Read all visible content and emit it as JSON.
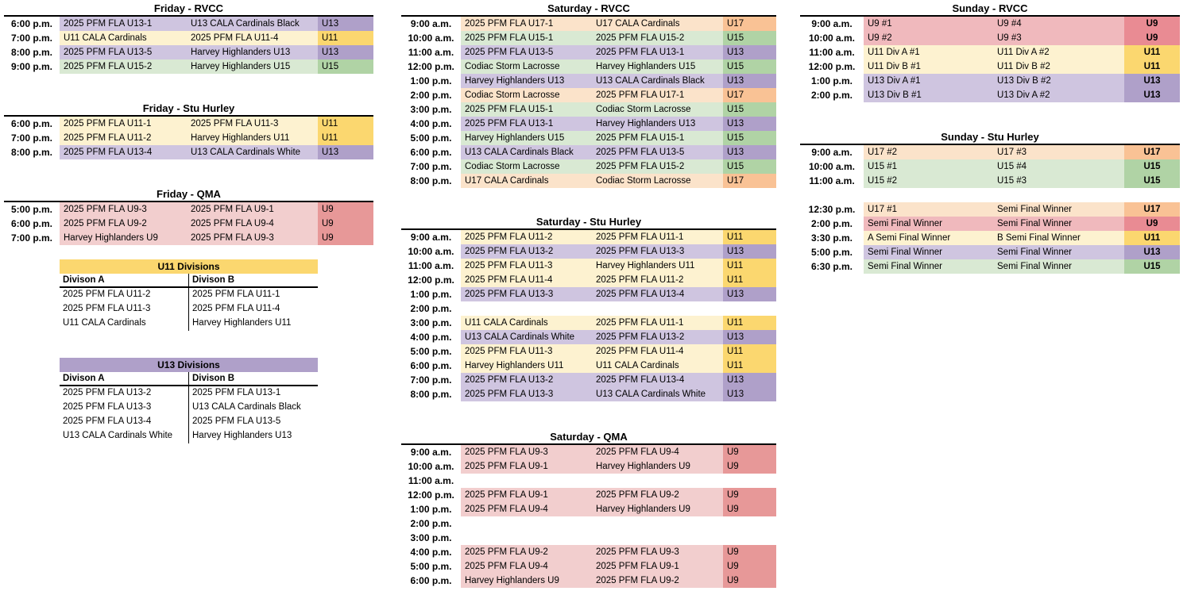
{
  "palette": {
    "u9": {
      "body": "#F2CECE",
      "cat": "#E79898"
    },
    "u9_sunday": {
      "body": "#F0B9BD",
      "cat": "#E98B93"
    },
    "u11": {
      "body": "#FDF2D0",
      "cat": "#FBD76F"
    },
    "u13": {
      "body": "#CFC5E0",
      "cat": "#AFA0C9"
    },
    "u15": {
      "body": "#D9E9D3",
      "cat": "#B0D3A5"
    },
    "u17": {
      "body": "#FBE3CA",
      "cat": "#F9C295"
    }
  },
  "schedule_tables": [
    {
      "id": "friday-rvcc",
      "title": "Friday - RVCC",
      "rows": [
        {
          "time": "6:00 p.m.",
          "home": "2025 PFM FLA U13-1",
          "away": "U13 CALA Cardinals Black",
          "cat": "U13",
          "color": "u13"
        },
        {
          "time": "7:00 p.m.",
          "home": "U11 CALA Cardinals",
          "away": "2025 PFM FLA U11-4",
          "cat": "U11",
          "color": "u11"
        },
        {
          "time": "8:00 p.m.",
          "home": "2025 PFM FLA U13-5",
          "away": "Harvey Highlanders U13",
          "cat": "U13",
          "color": "u13"
        },
        {
          "time": "9:00 p.m.",
          "home": "2025 PFM FLA U15-2",
          "away": "Harvey Highlanders U15",
          "cat": "U15",
          "color": "u15"
        }
      ]
    },
    {
      "id": "friday-stu-hurley",
      "title": "Friday - Stu Hurley",
      "rows": [
        {
          "time": "6:00 p.m.",
          "home": "2025 PFM FLA U11-1",
          "away": "2025 PFM FLA U11-3",
          "cat": "U11",
          "color": "u11"
        },
        {
          "time": "7:00 p.m.",
          "home": "2025 PFM FLA U11-2",
          "away": "Harvey Highlanders U11",
          "cat": "U11",
          "color": "u11"
        },
        {
          "time": "8:00 p.m.",
          "home": "2025 PFM FLA U13-4",
          "away": "U13 CALA Cardinals White",
          "cat": "U13",
          "color": "u13"
        }
      ]
    },
    {
      "id": "friday-qma",
      "title": "Friday - QMA",
      "rows": [
        {
          "time": "5:00 p.m.",
          "home": "2025 PFM FLA U9-3",
          "away": "2025 PFM FLA U9-1",
          "cat": "U9",
          "color": "u9"
        },
        {
          "time": "6:00 p.m.",
          "home": "2025 PFM FLA U9-2",
          "away": "2025 PFM FLA U9-4",
          "cat": "U9",
          "color": "u9"
        },
        {
          "time": "7:00 p.m.",
          "home": "Harvey Highlanders U9",
          "away": "2025 PFM FLA U9-3",
          "cat": "U9",
          "color": "u9"
        }
      ]
    },
    {
      "id": "saturday-rvcc",
      "title": "Saturday - RVCC",
      "rows": [
        {
          "time": "9:00 a.m.",
          "home": "2025 PFM FLA U17-1",
          "away": "U17 CALA Cardinals",
          "cat": "U17",
          "color": "u17"
        },
        {
          "time": "10:00 a.m.",
          "home": "2025 PFM FLA U15-1",
          "away": "2025 PFM FLA U15-2",
          "cat": "U15",
          "color": "u15"
        },
        {
          "time": "11:00 a.m.",
          "home": "2025 PFM FLA U13-5",
          "away": "2025 PFM FLA U13-1",
          "cat": "U13",
          "color": "u13"
        },
        {
          "time": "12:00 p.m.",
          "home": "Codiac Storm Lacrosse",
          "away": "Harvey Highlanders U15",
          "cat": "U15",
          "color": "u15"
        },
        {
          "time": "1:00 p.m.",
          "home": "Harvey Highlanders U13",
          "away": "U13 CALA Cardinals Black",
          "cat": "U13",
          "color": "u13"
        },
        {
          "time": "2:00 p.m.",
          "home": "Codiac Storm Lacrosse",
          "away": "2025 PFM FLA U17-1",
          "cat": "U17",
          "color": "u17"
        },
        {
          "time": "3:00 p.m.",
          "home": "2025 PFM FLA U15-1",
          "away": "Codiac Storm Lacrosse",
          "cat": "U15",
          "color": "u15"
        },
        {
          "time": "4:00 p.m.",
          "home": "2025 PFM FLA U13-1",
          "away": "Harvey Highlanders U13",
          "cat": "U13",
          "color": "u13"
        },
        {
          "time": "5:00 p.m.",
          "home": "Harvey Highlanders U15",
          "away": "2025 PFM FLA U15-1",
          "cat": "U15",
          "color": "u15"
        },
        {
          "time": "6:00 p.m.",
          "home": "U13 CALA Cardinals Black",
          "away": "2025 PFM FLA U13-5",
          "cat": "U13",
          "color": "u13"
        },
        {
          "time": "7:00 p.m.",
          "home": "Codiac Storm Lacrosse",
          "away": "2025 PFM FLA U15-2",
          "cat": "U15",
          "color": "u15"
        },
        {
          "time": "8:00 p.m.",
          "home": "U17 CALA Cardinals",
          "away": "Codiac Storm Lacrosse",
          "cat": "U17",
          "color": "u17"
        }
      ]
    },
    {
      "id": "saturday-stu-hurley",
      "title": "Saturday - Stu Hurley",
      "rows": [
        {
          "time": "9:00 a.m.",
          "home": "2025 PFM FLA U11-2",
          "away": "2025 PFM FLA U11-1",
          "cat": "U11",
          "color": "u11"
        },
        {
          "time": "10:00 a.m.",
          "home": "2025 PFM FLA U13-2",
          "away": "2025 PFM FLA U13-3",
          "cat": "U13",
          "color": "u13"
        },
        {
          "time": "11:00 a.m.",
          "home": "2025 PFM FLA U11-3",
          "away": "Harvey Highlanders U11",
          "cat": "U11",
          "color": "u11"
        },
        {
          "time": "12:00 p.m.",
          "home": "2025 PFM FLA U11-4",
          "away": "2025 PFM FLA U11-2",
          "cat": "U11",
          "color": "u11"
        },
        {
          "time": "1:00 p.m.",
          "home": "2025 PFM FLA U13-3",
          "away": "2025 PFM FLA U13-4",
          "cat": "U13",
          "color": "u13"
        },
        {
          "time": "2:00 p.m.",
          "home": "",
          "away": "",
          "cat": "",
          "color": null
        },
        {
          "time": "3:00 p.m.",
          "home": "U11 CALA Cardinals",
          "away": "2025 PFM FLA U11-1",
          "cat": "U11",
          "color": "u11"
        },
        {
          "time": "4:00 p.m.",
          "home": "U13 CALA Cardinals White",
          "away": "2025 PFM FLA U13-2",
          "cat": "U13",
          "color": "u13"
        },
        {
          "time": "5:00 p.m.",
          "home": "2025 PFM FLA U11-3",
          "away": "2025 PFM FLA U11-4",
          "cat": "U11",
          "color": "u11"
        },
        {
          "time": "6:00 p.m.",
          "home": "Harvey Highlanders U11",
          "away": "U11 CALA Cardinals",
          "cat": "U11",
          "color": "u11"
        },
        {
          "time": "7:00 p.m.",
          "home": "2025 PFM FLA U13-2",
          "away": "2025 PFM FLA U13-4",
          "cat": "U13",
          "color": "u13"
        },
        {
          "time": "8:00 p.m.",
          "home": "2025 PFM FLA U13-3",
          "away": "U13 CALA Cardinals White",
          "cat": "U13",
          "color": "u13"
        }
      ]
    },
    {
      "id": "saturday-qma",
      "title": "Saturday - QMA",
      "rows": [
        {
          "time": "9:00 a.m.",
          "home": "2025 PFM FLA U9-3",
          "away": "2025 PFM FLA U9-4",
          "cat": "U9",
          "color": "u9"
        },
        {
          "time": "10:00 a.m.",
          "home": "2025 PFM FLA U9-1",
          "away": "Harvey Highlanders U9",
          "cat": "U9",
          "color": "u9"
        },
        {
          "time": "11:00 a.m.",
          "home": "",
          "away": "",
          "cat": "",
          "color": null
        },
        {
          "time": "12:00 p.m.",
          "home": "2025 PFM FLA U9-1",
          "away": "2025 PFM FLA U9-2",
          "cat": "U9",
          "color": "u9"
        },
        {
          "time": "1:00 p.m.",
          "home": "2025 PFM FLA U9-4",
          "away": "Harvey Highlanders U9",
          "cat": "U9",
          "color": "u9"
        },
        {
          "time": "2:00 p.m.",
          "home": "",
          "away": "",
          "cat": "",
          "color": null
        },
        {
          "time": "3:00 p.m.",
          "home": "",
          "away": "",
          "cat": "",
          "color": null
        },
        {
          "time": "4:00 p.m.",
          "home": "2025 PFM FLA U9-2",
          "away": "2025 PFM FLA U9-3",
          "cat": "U9",
          "color": "u9"
        },
        {
          "time": "5:00 p.m.",
          "home": "2025 PFM FLA U9-4",
          "away": "2025 PFM FLA U9-1",
          "cat": "U9",
          "color": "u9"
        },
        {
          "time": "6:00 p.m.",
          "home": "Harvey Highlanders U9",
          "away": "2025 PFM FLA U9-2",
          "cat": "U9",
          "color": "u9"
        }
      ]
    },
    {
      "id": "sunday-rvcc",
      "title": "Sunday - RVCC",
      "rows": [
        {
          "time": "9:00 a.m.",
          "home": "U9 #1",
          "away": "U9 #4",
          "cat": "U9",
          "color": "u9_sunday"
        },
        {
          "time": "10:00 a.m.",
          "home": "U9 #2",
          "away": "U9 #3",
          "cat": "U9",
          "color": "u9_sunday"
        },
        {
          "time": "11:00 a.m.",
          "home": "U11 Div A #1",
          "away": "U11 Div A #2",
          "cat": "U11",
          "color": "u11"
        },
        {
          "time": "12:00 p.m.",
          "home": "U11 Div B #1",
          "away": "U11 Div B #2",
          "cat": "U11",
          "color": "u11"
        },
        {
          "time": "1:00 p.m.",
          "home": "U13 Div A #1",
          "away": "U13 Div B #2",
          "cat": "U13",
          "color": "u13"
        },
        {
          "time": "2:00 p.m.",
          "home": "U13 Div B #1",
          "away": "U13 Div A #2",
          "cat": "U13",
          "color": "u13"
        }
      ]
    },
    {
      "id": "sunday-stu-hurley",
      "title": "Sunday - Stu Hurley",
      "rows": [
        {
          "time": "9:00 a.m.",
          "home": "U17 #2",
          "away": "U17 #3",
          "cat": "U17",
          "color": "u17"
        },
        {
          "time": "10:00 a.m.",
          "home": "U15 #1",
          "away": "U15 #4",
          "cat": "U15",
          "color": "u15"
        },
        {
          "time": "11:00 a.m.",
          "home": "U15 #2",
          "away": "U15 #3",
          "cat": "U15",
          "color": "u15"
        },
        {
          "time": "",
          "home": "",
          "away": "",
          "cat": "",
          "color": null
        },
        {
          "time": "12:30 p.m.",
          "home": "U17 #1",
          "away": "Semi Final Winner",
          "cat": "U17",
          "color": "u17"
        },
        {
          "time": "2:00 p.m.",
          "home": "Semi Final Winner",
          "away": "Semi Final Winner",
          "cat": "U9",
          "color": "u9_sunday"
        },
        {
          "time": "3:30 p.m.",
          "home": "A Semi Final Winner",
          "away": "B Semi Final Winner",
          "cat": "U11",
          "color": "u11"
        },
        {
          "time": "5:00 p.m.",
          "home": "Semi Final Winner",
          "away": "Semi Final Winner",
          "cat": "U13",
          "color": "u13"
        },
        {
          "time": "6:30 p.m.",
          "home": "Semi Final Winner",
          "away": "Semi Final Winner",
          "cat": "U15",
          "color": "u15"
        }
      ]
    }
  ],
  "division_tables": [
    {
      "id": "u11-divisions",
      "title": "U11 Divisions",
      "accent": "u11",
      "columns": [
        "Divison A",
        "Divison B"
      ],
      "division_a": [
        "2025 PFM FLA U11-2",
        "2025 PFM FLA U11-3",
        "U11 CALA Cardinals"
      ],
      "division_b": [
        "2025 PFM FLA U11-1",
        "2025 PFM FLA U11-4",
        "Harvey Highlanders U11"
      ]
    },
    {
      "id": "u13-divisions",
      "title": "U13 Divisions",
      "accent": "u13",
      "columns": [
        "Divison A",
        "Divison B"
      ],
      "division_a": [
        "2025 PFM FLA U13-2",
        "2025 PFM FLA U13-3",
        "2025 PFM FLA U13-4",
        "U13 CALA Cardinals White"
      ],
      "division_b": [
        "2025 PFM FLA U13-1",
        "U13 CALA Cardinals Black",
        "2025 PFM FLA U13-5",
        "Harvey Highlanders U13"
      ]
    }
  ]
}
